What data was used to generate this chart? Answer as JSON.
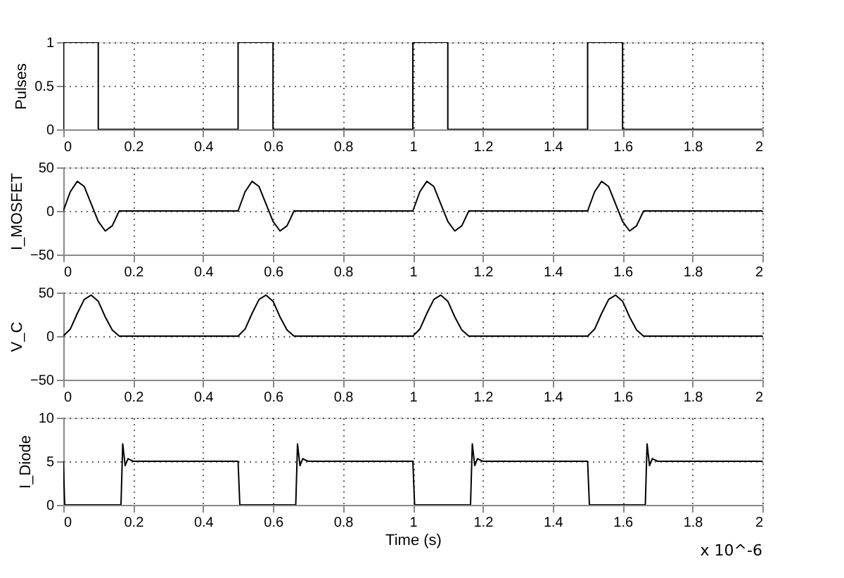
{
  "chart_data": [
    {
      "type": "line",
      "ylabel": "Pulses",
      "xlim": [
        0,
        2
      ],
      "xticks": [
        0,
        0.2,
        0.4,
        0.6,
        0.8,
        1,
        1.2,
        1.4,
        1.6,
        1.8,
        2
      ],
      "ylim": [
        0,
        1
      ],
      "yticks": [
        0,
        0.5,
        1
      ],
      "grid": true,
      "line_style": "solid",
      "x": [
        0,
        0,
        0.1,
        0.1,
        0.5,
        0.5,
        0.6,
        0.6,
        1,
        1,
        1.1,
        1.1,
        1.5,
        1.5,
        1.6,
        1.6,
        2
      ],
      "series": [
        {
          "color": "#000000",
          "values": [
            0,
            1,
            1,
            0,
            0,
            1,
            1,
            0,
            0,
            1,
            1,
            0,
            0,
            1,
            1,
            0,
            0
          ]
        }
      ]
    },
    {
      "type": "line",
      "ylabel": "I_MOSFET",
      "xlim": [
        0,
        2
      ],
      "xticks": [
        0,
        0.2,
        0.4,
        0.6,
        0.8,
        1,
        1.2,
        1.4,
        1.6,
        1.8,
        2
      ],
      "ylim": [
        -50,
        50
      ],
      "yticks": [
        -50,
        0,
        50
      ],
      "grid": true,
      "line_style": "solid",
      "x": [
        0,
        0.02,
        0.04,
        0.06,
        0.08,
        0.1,
        0.12,
        0.14,
        0.16,
        0.5,
        0.52,
        0.54,
        0.56,
        0.58,
        0.6,
        0.62,
        0.64,
        0.66,
        1,
        1.02,
        1.04,
        1.06,
        1.08,
        1.1,
        1.12,
        1.14,
        1.16,
        1.5,
        1.52,
        1.54,
        1.56,
        1.58,
        1.6,
        1.62,
        1.64,
        1.66,
        2
      ],
      "series": [
        {
          "color": "#000000",
          "values": [
            0,
            22,
            34,
            28,
            8,
            -12,
            -23,
            -17,
            0,
            0,
            22,
            34,
            28,
            8,
            -12,
            -23,
            -17,
            0,
            0,
            22,
            34,
            28,
            8,
            -12,
            -23,
            -17,
            0,
            0,
            22,
            34,
            28,
            8,
            -12,
            -23,
            -17,
            0,
            0
          ]
        }
      ]
    },
    {
      "type": "line",
      "ylabel": "V_C",
      "xlim": [
        0,
        2
      ],
      "xticks": [
        0,
        0.2,
        0.4,
        0.6,
        0.8,
        1,
        1.2,
        1.4,
        1.6,
        1.8,
        2
      ],
      "ylim": [
        -50,
        50
      ],
      "yticks": [
        -50,
        0,
        50
      ],
      "grid": true,
      "line_style": "solid",
      "x": [
        0,
        0.02,
        0.04,
        0.06,
        0.08,
        0.1,
        0.12,
        0.14,
        0.16,
        0.5,
        0.52,
        0.54,
        0.56,
        0.58,
        0.6,
        0.62,
        0.64,
        0.66,
        1,
        1.02,
        1.04,
        1.06,
        1.08,
        1.1,
        1.12,
        1.14,
        1.16,
        1.5,
        1.52,
        1.54,
        1.56,
        1.58,
        1.6,
        1.62,
        1.64,
        1.66,
        2
      ],
      "series": [
        {
          "color": "#000000",
          "values": [
            0,
            8,
            26,
            42,
            47,
            40,
            22,
            7,
            0,
            0,
            8,
            26,
            42,
            47,
            40,
            22,
            7,
            0,
            0,
            8,
            26,
            42,
            47,
            40,
            22,
            7,
            0,
            0,
            8,
            26,
            42,
            47,
            40,
            22,
            7,
            0,
            0
          ]
        }
      ]
    },
    {
      "type": "line",
      "xlabel": "Time (s)",
      "ylabel": "I_Diode",
      "annotations": [
        "x 10^-6"
      ],
      "xlim": [
        0,
        2
      ],
      "xticks": [
        0,
        0.2,
        0.4,
        0.6,
        0.8,
        1,
        1.2,
        1.4,
        1.6,
        1.8,
        2
      ],
      "ylim": [
        0,
        10
      ],
      "yticks": [
        0,
        5,
        10
      ],
      "grid": true,
      "line_style": "solid",
      "x": [
        0,
        0.004,
        0.165,
        0.17,
        0.177,
        0.185,
        0.2,
        0.5,
        0.505,
        0.665,
        0.67,
        0.677,
        0.685,
        0.7,
        1,
        1.005,
        1.165,
        1.17,
        1.177,
        1.185,
        1.2,
        1.5,
        1.505,
        1.665,
        1.67,
        1.677,
        1.685,
        1.7,
        2
      ],
      "series": [
        {
          "color": "#000000",
          "values": [
            5,
            0,
            0,
            7,
            4.5,
            5.3,
            5,
            5,
            0,
            0,
            7,
            4.5,
            5.3,
            5,
            5,
            0,
            0,
            7,
            4.5,
            5.3,
            5,
            5,
            0,
            0,
            7,
            4.5,
            5.3,
            5,
            5
          ]
        }
      ]
    }
  ]
}
